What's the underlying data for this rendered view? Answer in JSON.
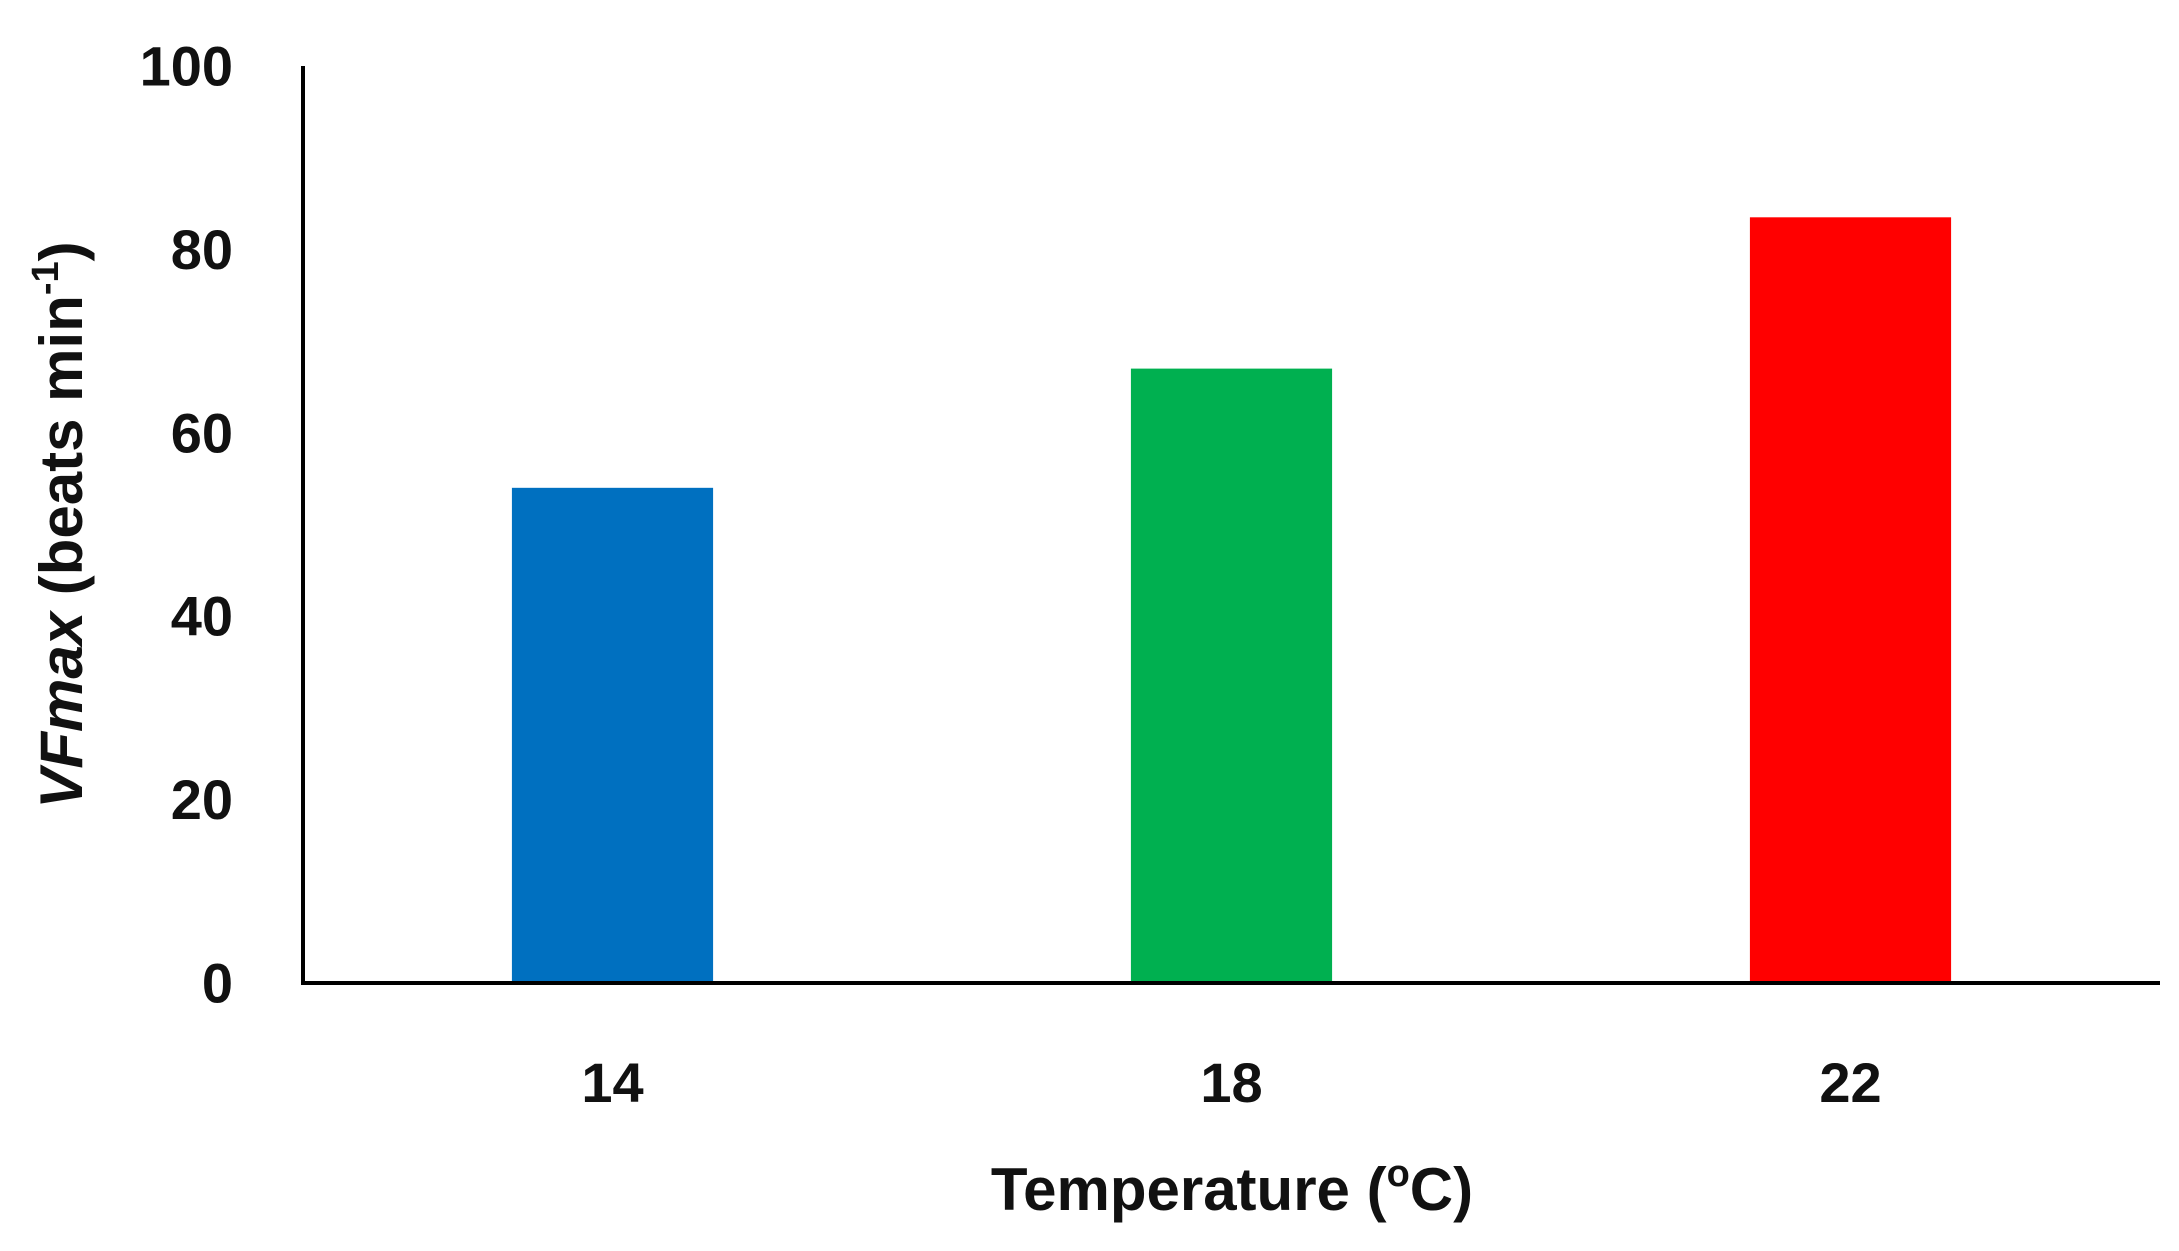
{
  "chart_data": {
    "type": "bar",
    "title": "",
    "categories": [
      "14",
      "18",
      "22"
    ],
    "values": [
      54,
      67,
      83.5
    ],
    "colors": [
      "#0070C0",
      "#00B050",
      "#FF0000"
    ],
    "xlabel": {
      "prefix": "Temperature (",
      "sup": "o",
      "suffix": "C)"
    },
    "ylabel": {
      "italic": "VFmax",
      "prefix": " (beats min",
      "sup": "-1",
      "suffix": ")"
    },
    "ylim": [
      0,
      100
    ],
    "yticks": [
      "0",
      "20",
      "40",
      "60",
      "80",
      "100"
    ],
    "grid": false,
    "legend": "none"
  }
}
